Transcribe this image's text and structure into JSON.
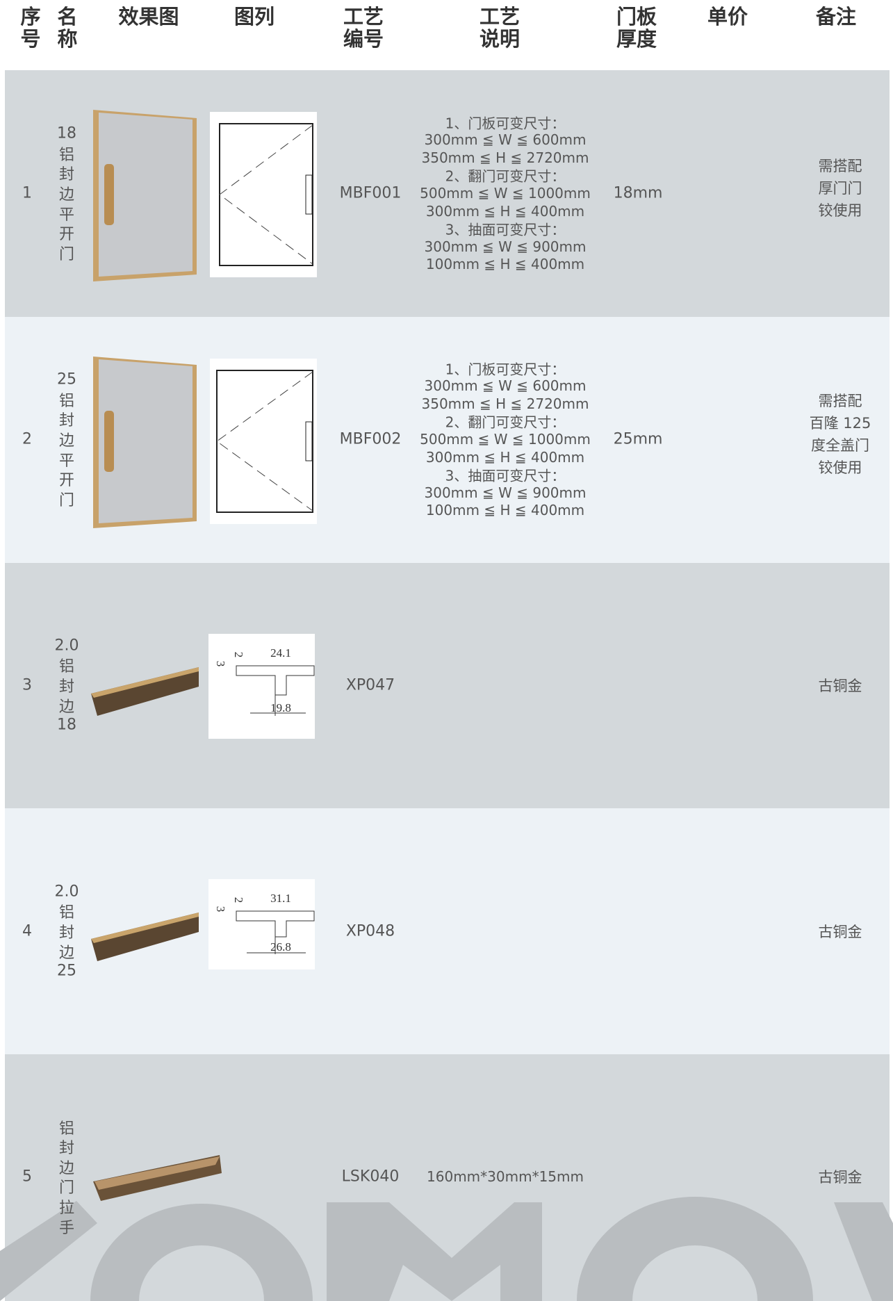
{
  "header": {
    "columns": [
      [
        "序",
        "号"
      ],
      [
        "名",
        "称"
      ],
      [
        "效果图"
      ],
      [
        "图列"
      ],
      [
        "工艺",
        "编号"
      ],
      [
        "工艺",
        "说明"
      ],
      [
        "门板",
        "厚度"
      ],
      [
        "单价"
      ],
      [
        "备注"
      ]
    ]
  },
  "table": {
    "rows": [
      {
        "index": "1",
        "name": [
          "18",
          "铝",
          "封",
          "边",
          "平",
          "开",
          "门"
        ],
        "code": "MBF001",
        "description": [
          "1、门板可变尺寸：",
          "300mm ≦ W ≦ 600mm",
          "350mm ≦ H ≦ 2720mm",
          "2、翻门可变尺寸：",
          "500mm ≦ W ≦ 1000mm",
          "300mm ≦ H ≦ 400mm",
          "3、抽面可变尺寸：",
          "300mm ≦ W ≦ 900mm",
          "100mm ≦ H ≦ 400mm"
        ],
        "thickness": "18mm",
        "note": [
          "需搭配",
          "厚门门",
          "铰使用"
        ]
      },
      {
        "index": "2",
        "name": [
          "25",
          "铝",
          "封",
          "边",
          "平",
          "开",
          "门"
        ],
        "code": "MBF002",
        "description": [
          "1、门板可变尺寸：",
          "300mm ≦ W ≦ 600mm",
          "350mm ≦ H ≦ 2720mm",
          "2、翻门可变尺寸：",
          "500mm ≦ W ≦ 1000mm",
          "300mm ≦ H ≦ 400mm",
          "3、抽面可变尺寸：",
          "300mm ≦ W ≦ 900mm",
          "100mm ≦ H ≦ 400mm"
        ],
        "thickness": "25mm",
        "note": [
          "需搭配",
          "百隆 125",
          "度全盖门",
          "铰使用"
        ]
      },
      {
        "index": "3",
        "name": [
          "2.0",
          "铝",
          "封",
          "边",
          "18"
        ],
        "code": "XP047",
        "diagram_labels": [
          "24.1",
          "19.8",
          "3",
          "2"
        ],
        "note": [
          "古铜金"
        ]
      },
      {
        "index": "4",
        "name": [
          "2.0",
          "铝",
          "封",
          "边",
          "25"
        ],
        "code": "XP048",
        "diagram_labels": [
          "31.1",
          "26.8",
          "3",
          "2"
        ],
        "note": [
          "古铜金"
        ]
      },
      {
        "index": "5",
        "name": [
          "铝",
          "封",
          "边",
          "门",
          "拉",
          "手"
        ],
        "code": "LSK040",
        "description": [
          "160mm*30mm*15mm"
        ],
        "note": [
          "古铜金"
        ]
      }
    ]
  }
}
